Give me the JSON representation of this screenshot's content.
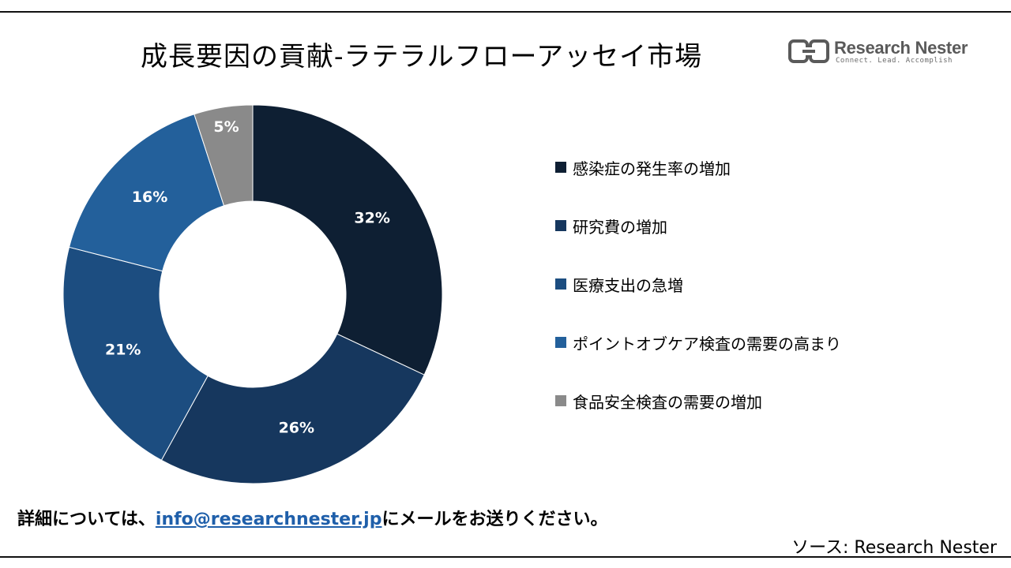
{
  "title": "成長要因の貢献-ラテラルフローアッセイ市場",
  "logo": {
    "name": "Research Nester",
    "tagline": "Connect. Lead. Accomplish"
  },
  "chart_data": {
    "type": "pie",
    "donut": true,
    "title": "成長要因の貢献-ラテラルフローアッセイ市場",
    "categories": [
      "感染症の発生率の増加",
      "研究費の増加",
      "医療支出の急増",
      "ポイントオブケア検査の需要の高まり",
      "食品安全検査の需要の増加"
    ],
    "values": [
      32,
      26,
      21,
      16,
      5
    ],
    "labels": [
      "32%",
      "26%",
      "21%",
      "16%",
      "5%"
    ],
    "colors": [
      "#0e1f33",
      "#16375e",
      "#1c4d80",
      "#23609b",
      "#8a8a8a"
    ],
    "legend_position": "right"
  },
  "footer": {
    "prefix": "詳細については、",
    "email": "info@researchnester.jp",
    "suffix": "にメールをお送りください。"
  },
  "source": "ソース: Research Nester"
}
